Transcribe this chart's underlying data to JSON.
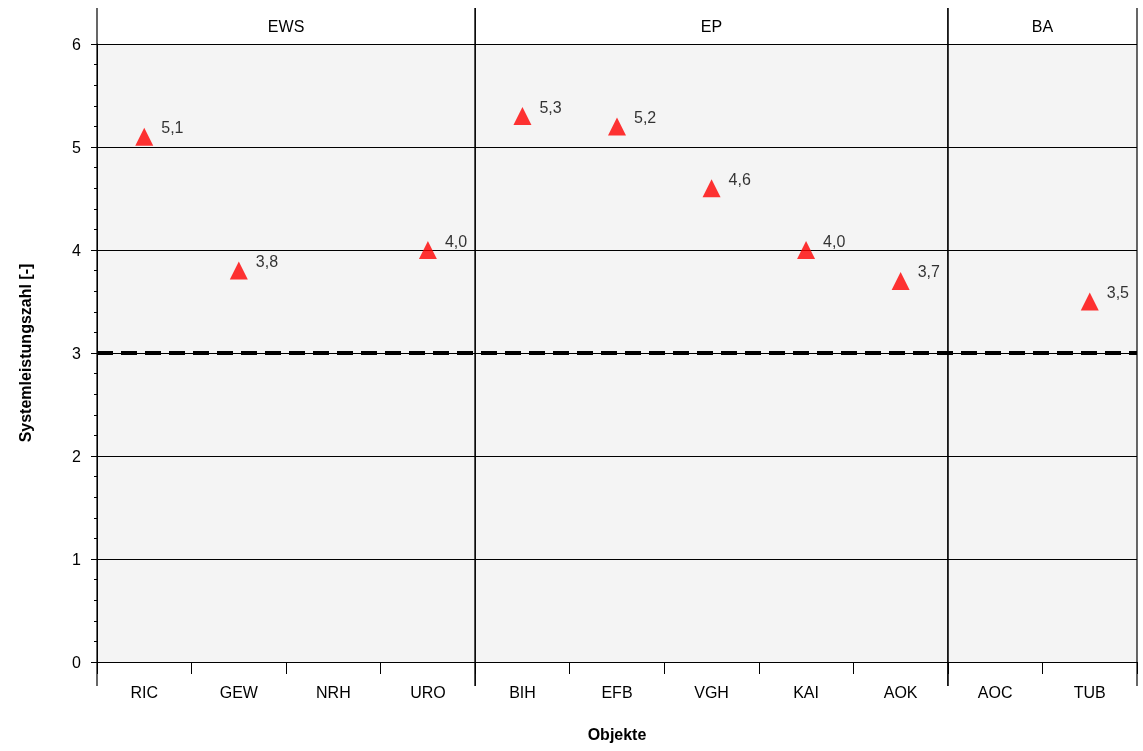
{
  "chart_data": {
    "type": "scatter",
    "xlabel": "Objekte",
    "ylabel": "Systemleistungszahl [-]",
    "categories": [
      "RIC",
      "GEW",
      "NRH",
      "URO",
      "BIH",
      "EFB",
      "VGH",
      "KAI",
      "AOK",
      "AOC",
      "TUB"
    ],
    "values": [
      5.1,
      3.8,
      null,
      4.0,
      5.3,
      5.2,
      4.6,
      4.0,
      3.7,
      null,
      3.5
    ],
    "value_labels": [
      "5,1",
      "3,8",
      null,
      "4,0",
      "5,3",
      "5,2",
      "4,6",
      "4,0",
      "3,7",
      null,
      "3,5"
    ],
    "color": "#ff0000",
    "marker": "triangle",
    "ylim": [
      0,
      6
    ],
    "yticks": [
      0,
      1,
      2,
      3,
      4,
      5,
      6
    ],
    "grid": "y",
    "ref_lines": [
      {
        "axis": "y",
        "value": 3,
        "color": "#000000",
        "line_style": "dashed"
      }
    ],
    "bands": [
      {
        "axis": "x",
        "from": "RIC",
        "to": "URO",
        "label": "EWS",
        "color": "#f4f4f4"
      },
      {
        "axis": "x",
        "from": "BIH",
        "to": "AOK",
        "label": "EP",
        "color": "#f4f4f4"
      },
      {
        "axis": "x",
        "from": "AOC",
        "to": "TUB",
        "label": "BA",
        "color": "#f4f4f4"
      }
    ]
  }
}
